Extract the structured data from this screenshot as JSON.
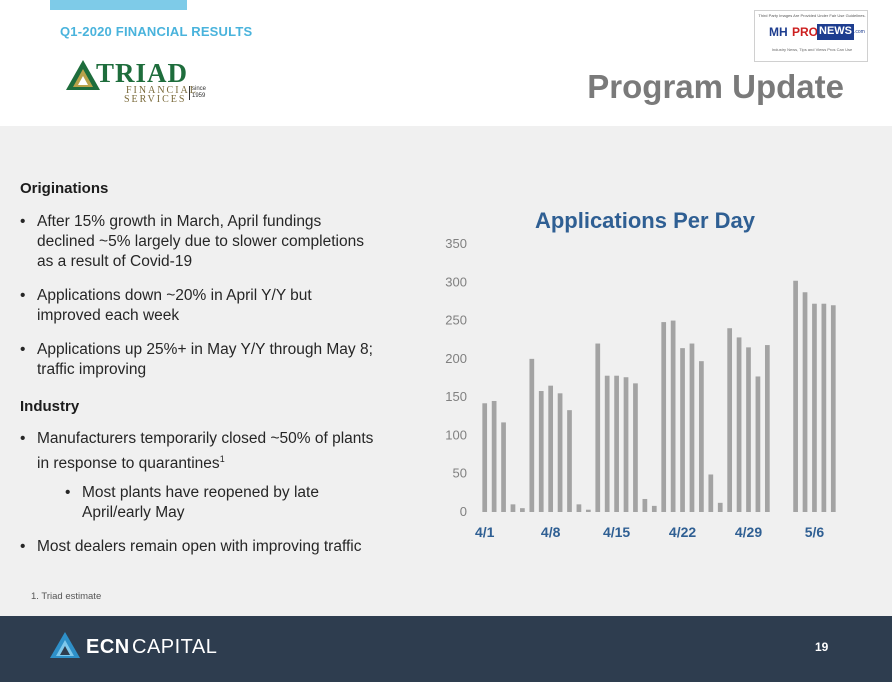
{
  "header": {
    "kicker": "Q1-2020 FINANCIAL RESULTS",
    "page_title": "Program Update",
    "accent_color": "#7ecbe8",
    "title_color": "#7a7a7a"
  },
  "triad_logo": {
    "word": "TRIAD",
    "line1": "FINANCIAL",
    "line2": "SERVICES",
    "since": "since",
    "year": "1959",
    "color": "#1e6d3c"
  },
  "mh_badge": {
    "top_text": "Third Party Images Are Provided Under Fair Use Guidelines.",
    "mh": "MH",
    "pro": "PRO",
    "news": "NEWS",
    "com": ".com",
    "tagline": "Industry News, Tips and Views Pros Can Use"
  },
  "content": {
    "originations": {
      "heading": "Originations",
      "bullets": [
        {
          "l1": "After 15% growth in March, April fundings",
          "l2": "declined ~5% largely due to slower completions",
          "l3": "as a result of Covid-19"
        },
        {
          "l1": "Applications down ~20% in April Y/Y but",
          "l2": "improved each week"
        },
        {
          "l1": "Applications up 25%+ in May Y/Y through May 8;",
          "l2": "traffic improving"
        }
      ]
    },
    "industry": {
      "heading": "Industry",
      "bullets": [
        {
          "l1": "Manufacturers temporarily closed ~50% of plants",
          "l2": "in response to quarantines",
          "sup": "1"
        },
        {
          "l1": "Most plants have reopened by late",
          "l2": "April/early May"
        },
        {
          "l1": "Most dealers remain open with improving traffic"
        }
      ]
    },
    "bullet_glyph": "•",
    "footnote": "1. Triad estimate"
  },
  "chart_data": {
    "type": "bar",
    "title": "Applications Per Day",
    "ylim": [
      0,
      350
    ],
    "yticks": [
      0,
      50,
      100,
      150,
      200,
      250,
      300,
      350
    ],
    "xtick_labels": [
      "4/1",
      "4/8",
      "4/15",
      "4/22",
      "4/29",
      "5/6"
    ],
    "categories": [
      "4/1",
      "4/2",
      "4/3",
      "4/4",
      "4/5",
      "4/6",
      "4/7",
      "4/8",
      "4/9",
      "4/10",
      "4/11",
      "4/12",
      "4/13",
      "4/14",
      "4/15",
      "4/16",
      "4/17",
      "4/18",
      "4/19",
      "4/20",
      "4/21",
      "4/22",
      "4/23",
      "4/24",
      "4/25",
      "4/26",
      "4/27",
      "4/28",
      "4/29",
      "4/30",
      "5/1",
      "5/2",
      "5/3",
      "5/4",
      "5/5",
      "5/6",
      "5/7",
      "5/8"
    ],
    "values": [
      142,
      145,
      117,
      10,
      5,
      200,
      158,
      165,
      155,
      133,
      10,
      3,
      220,
      178,
      178,
      176,
      168,
      17,
      8,
      248,
      250,
      214,
      220,
      197,
      49,
      12,
      240,
      228,
      215,
      177,
      218,
      null,
      null,
      302,
      287,
      272,
      272,
      270
    ],
    "bar_color": "#a3a3a3",
    "title_color": "#2f5f93",
    "grid": false,
    "legend": "none"
  },
  "footer": {
    "brand_bold": "ECN",
    "brand_light": "CAPITAL",
    "page_number": "19",
    "background": "#2e3d4f"
  }
}
